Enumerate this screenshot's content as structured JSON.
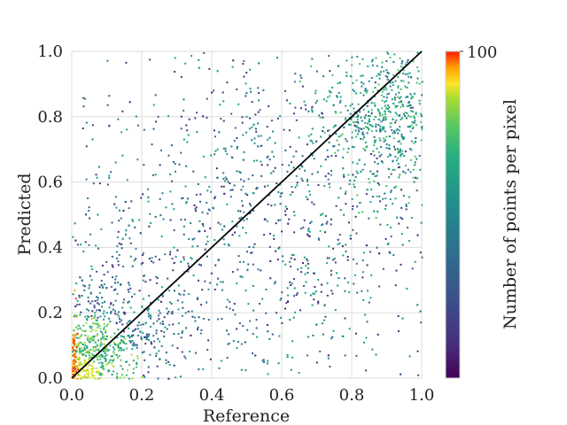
{
  "chart_data": {
    "type": "heatmap",
    "subtype": "2d-histogram-density-scatter",
    "title": "",
    "xlabel": "Reference",
    "ylabel": "Predicted",
    "xlim": [
      0.0,
      1.0
    ],
    "ylim": [
      0.0,
      1.0
    ],
    "x_ticks": [
      "0.0",
      "0.2",
      "0.4",
      "0.6",
      "0.8",
      "1.0"
    ],
    "y_ticks": [
      "0.0",
      "0.2",
      "0.4",
      "0.6",
      "0.8",
      "1.0"
    ],
    "grid": true,
    "reference_line": {
      "x": [
        0.0,
        1.0
      ],
      "y": [
        0.0,
        1.0
      ],
      "color": "#000000"
    },
    "colorbar": {
      "label": "Number of points per pixel",
      "colormap": "viridis",
      "range": [
        0,
        100
      ],
      "tick_labels": [
        "100"
      ],
      "over_colors": [
        "#FFE629",
        "#FFA000",
        "#FF3C00",
        "#FF1A00"
      ]
    },
    "density_description": "Points concentrate near (0,0) with high counts and along a broad band near the upper right (x≈0.8–1.0, y≈0.6–0.95); sparse elsewhere.",
    "clusters": [
      {
        "x": 0.03,
        "y": 0.05,
        "spread_x": 0.06,
        "spread_y": 0.08,
        "weight": 0.22
      },
      {
        "x": 0.12,
        "y": 0.15,
        "spread_x": 0.12,
        "spread_y": 0.15,
        "weight": 0.18
      },
      {
        "x": 0.9,
        "y": 0.8,
        "spread_x": 0.09,
        "spread_y": 0.12,
        "weight": 0.2
      },
      {
        "x": 0.55,
        "y": 0.5,
        "spread_x": 0.28,
        "spread_y": 0.28,
        "weight": 0.4
      }
    ]
  }
}
